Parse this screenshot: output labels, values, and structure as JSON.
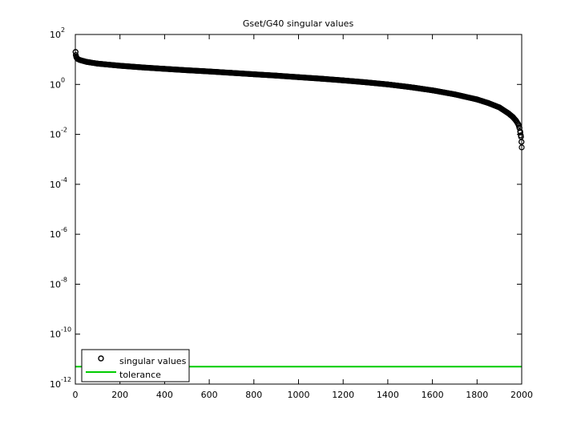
{
  "chart_data": {
    "type": "scatter",
    "title": "Gset/G40 singular values",
    "xlabel": "",
    "ylabel": "",
    "xlim": [
      0,
      2000
    ],
    "ylim": [
      1e-12,
      100
    ],
    "yscale": "log",
    "x_ticks": [
      0,
      200,
      400,
      600,
      800,
      1000,
      1200,
      1400,
      1600,
      1800,
      2000
    ],
    "y_ticks": [
      {
        "base": "10",
        "exp": "2",
        "value": 100
      },
      {
        "base": "10",
        "exp": "0",
        "value": 1
      },
      {
        "base": "10",
        "exp": "-2",
        "value": 0.01
      },
      {
        "base": "10",
        "exp": "-4",
        "value": 0.0001
      },
      {
        "base": "10",
        "exp": "-6",
        "value": 1e-06
      },
      {
        "base": "10",
        "exp": "-8",
        "value": 1e-08
      },
      {
        "base": "10",
        "exp": "-10",
        "value": 1e-10
      },
      {
        "base": "10",
        "exp": "-12",
        "value": 1e-12
      }
    ],
    "grid": false,
    "legend_position": "bottom-left",
    "series": [
      {
        "name": "singular values",
        "marker": "circle",
        "color": "#000000",
        "points": [
          [
            1,
            20
          ],
          [
            2,
            15
          ],
          [
            5,
            12
          ],
          [
            10,
            10.5
          ],
          [
            20,
            9.5
          ],
          [
            50,
            8
          ],
          [
            100,
            6.8
          ],
          [
            200,
            5.6
          ],
          [
            300,
            4.8
          ],
          [
            400,
            4.2
          ],
          [
            500,
            3.7
          ],
          [
            600,
            3.3
          ],
          [
            700,
            2.9
          ],
          [
            800,
            2.55
          ],
          [
            900,
            2.25
          ],
          [
            1000,
            1.95
          ],
          [
            1100,
            1.7
          ],
          [
            1200,
            1.45
          ],
          [
            1300,
            1.22
          ],
          [
            1400,
            1.0
          ],
          [
            1500,
            0.78
          ],
          [
            1600,
            0.58
          ],
          [
            1700,
            0.4
          ],
          [
            1800,
            0.25
          ],
          [
            1850,
            0.18
          ],
          [
            1900,
            0.12
          ],
          [
            1940,
            0.07
          ],
          [
            1960,
            0.05
          ],
          [
            1975,
            0.035
          ],
          [
            1985,
            0.025
          ],
          [
            1990,
            0.018
          ],
          [
            1994,
            0.012
          ],
          [
            1997,
            0.008
          ],
          [
            1999,
            0.005
          ],
          [
            2000,
            0.003
          ]
        ]
      },
      {
        "name": "tolerance",
        "marker": "line",
        "color": "#00cc00",
        "value": 5e-12
      }
    ]
  }
}
